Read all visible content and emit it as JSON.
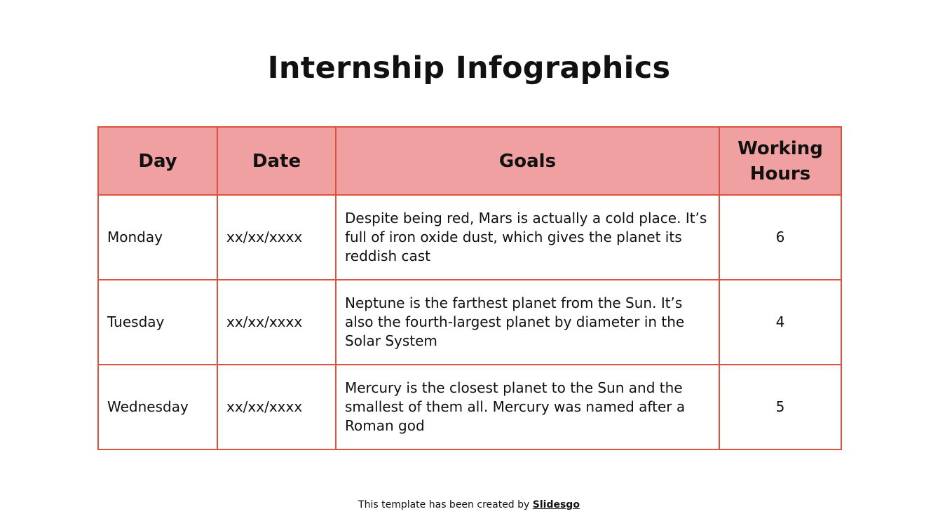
{
  "title": "Internship Infographics",
  "table": {
    "headers": [
      "Day",
      "Date",
      "Goals",
      "Working Hours"
    ],
    "rows": [
      {
        "day": "Monday",
        "date": "xx/xx/xxxx",
        "goal": "Despite being red, Mars is actually a cold place. It’s full of iron oxide dust, which gives the planet its reddish cast",
        "hours": "6"
      },
      {
        "day": "Tuesday",
        "date": "xx/xx/xxxx",
        "goal": "Neptune is the farthest planet from the Sun. It’s also the fourth-largest planet by diameter in the Solar System",
        "hours": "4"
      },
      {
        "day": "Wednesday",
        "date": "xx/xx/xxxx",
        "goal": "Mercury is the closest planet to the Sun and the smallest of them all. Mercury was named after a Roman god",
        "hours": "5"
      }
    ]
  },
  "footer": {
    "text": "This template has been created by ",
    "brand": "Slidesgo"
  },
  "colors": {
    "border": "#d9533f",
    "header_fill": "#f0a0a0"
  }
}
